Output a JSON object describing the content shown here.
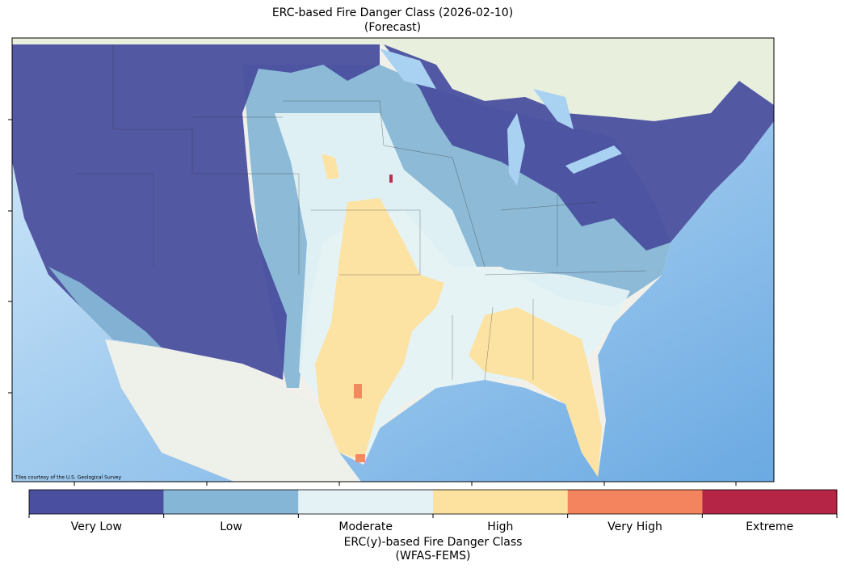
{
  "title": {
    "line1": "ERC-based Fire Danger Class (2026-02-10)",
    "line2": "(Forecast)"
  },
  "map": {
    "attribution": "Tiles courtesy of the U.S. Geological Survey"
  },
  "colorbar": {
    "classes": [
      {
        "name": "Very Low",
        "color": "#4a4f9f"
      },
      {
        "name": "Low",
        "color": "#86b6d6"
      },
      {
        "name": "Moderate",
        "color": "#e4f2f6"
      },
      {
        "name": "High",
        "color": "#fde29f"
      },
      {
        "name": "Very High",
        "color": "#f3845d"
      },
      {
        "name": "Extreme",
        "color": "#b52646"
      }
    ],
    "label_line1": "ERC(y)-based Fire Danger Class",
    "label_line2": "(WFAS-FEMS)"
  }
}
